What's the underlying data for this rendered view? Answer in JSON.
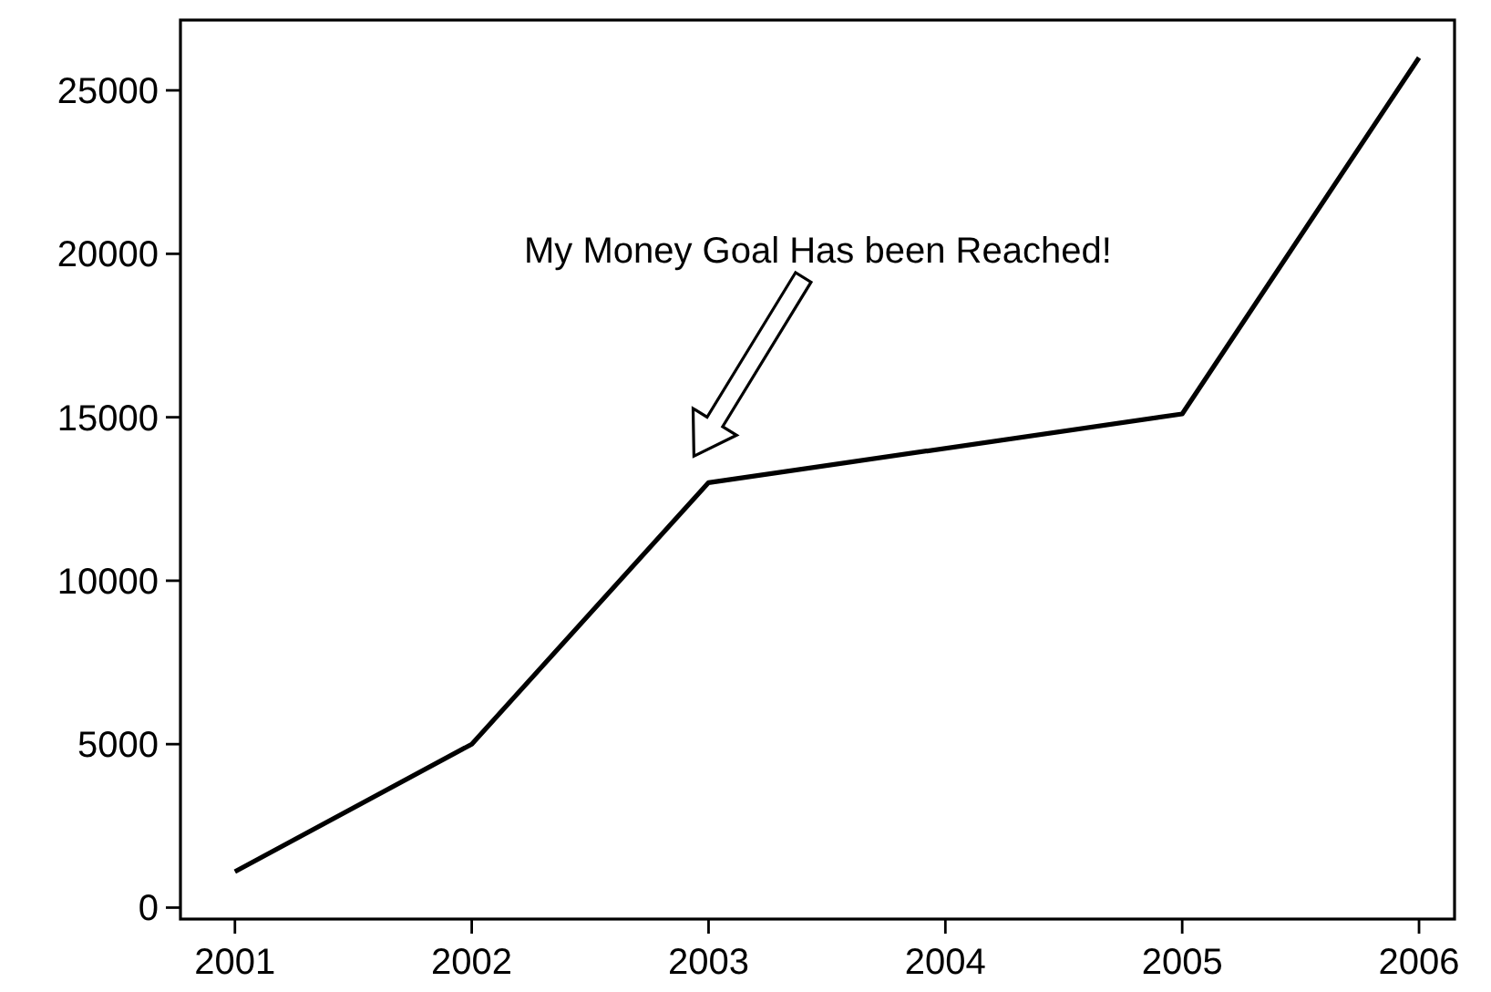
{
  "chart_data": {
    "type": "line",
    "x": [
      2001,
      2002,
      2003,
      2005,
      2006
    ],
    "values": [
      1100,
      5000,
      13000,
      15100,
      26000
    ],
    "color": "#000000",
    "xlim": [
      2000.77,
      2006.15
    ],
    "xticks": [
      2001,
      2002,
      2003,
      2004,
      2005,
      2006
    ],
    "ylim": [
      -350,
      27150
    ],
    "yticks": [
      0,
      5000,
      10000,
      15000,
      20000,
      25000
    ],
    "grid": false,
    "marker": "none",
    "line_style": "solid",
    "annotations": [
      "My Money Goal Has been Reached!"
    ]
  }
}
